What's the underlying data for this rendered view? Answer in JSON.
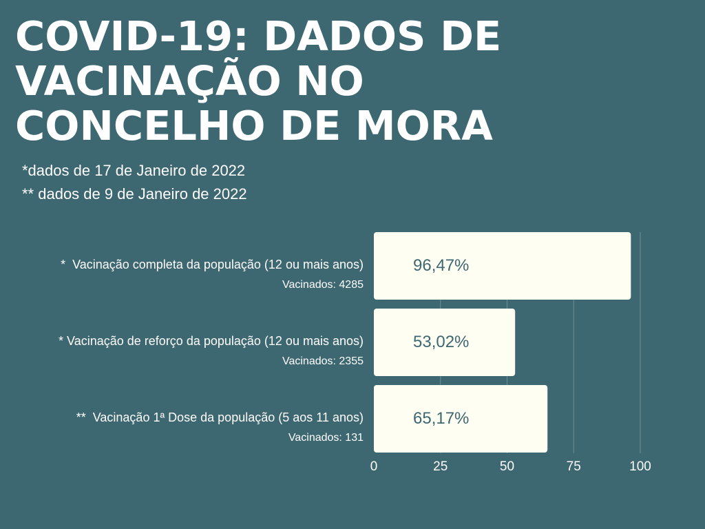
{
  "title_lines": [
    "COVID-19: DADOS DE",
    "VACINAÇÃO NO",
    "CONCELHO DE MORA"
  ],
  "notes": [
    "*dados de 17 de Janeiro de 2022",
    "** dados de 9 de Janeiro de 2022"
  ],
  "colors": {
    "background": "#3d6771",
    "bar": "#fefef2",
    "bar_label": "#3d6771",
    "gridline": "#6e9098",
    "text": "#ffffff"
  },
  "chart_data": {
    "type": "bar",
    "orientation": "horizontal",
    "title": "",
    "xlabel": "",
    "ylabel": "",
    "xlim": [
      0,
      100
    ],
    "xticks": [
      0,
      25,
      50,
      75,
      100
    ],
    "grid": true,
    "categories": [
      {
        "label": "*  Vacinação completa da população (12 ou mais anos)",
        "sublabel": "Vacinados: 4285",
        "value": 96.47,
        "value_label": "96,47%"
      },
      {
        "label": "* Vacinação de reforço da população (12 ou mais anos)",
        "sublabel": "Vacinados: 2355",
        "value": 53.02,
        "value_label": "53,02%"
      },
      {
        "label": "**  Vacinação 1ª Dose da população (5 aos 11 anos)",
        "sublabel": "Vacinados: 131",
        "value": 65.17,
        "value_label": "65,17%"
      }
    ]
  }
}
